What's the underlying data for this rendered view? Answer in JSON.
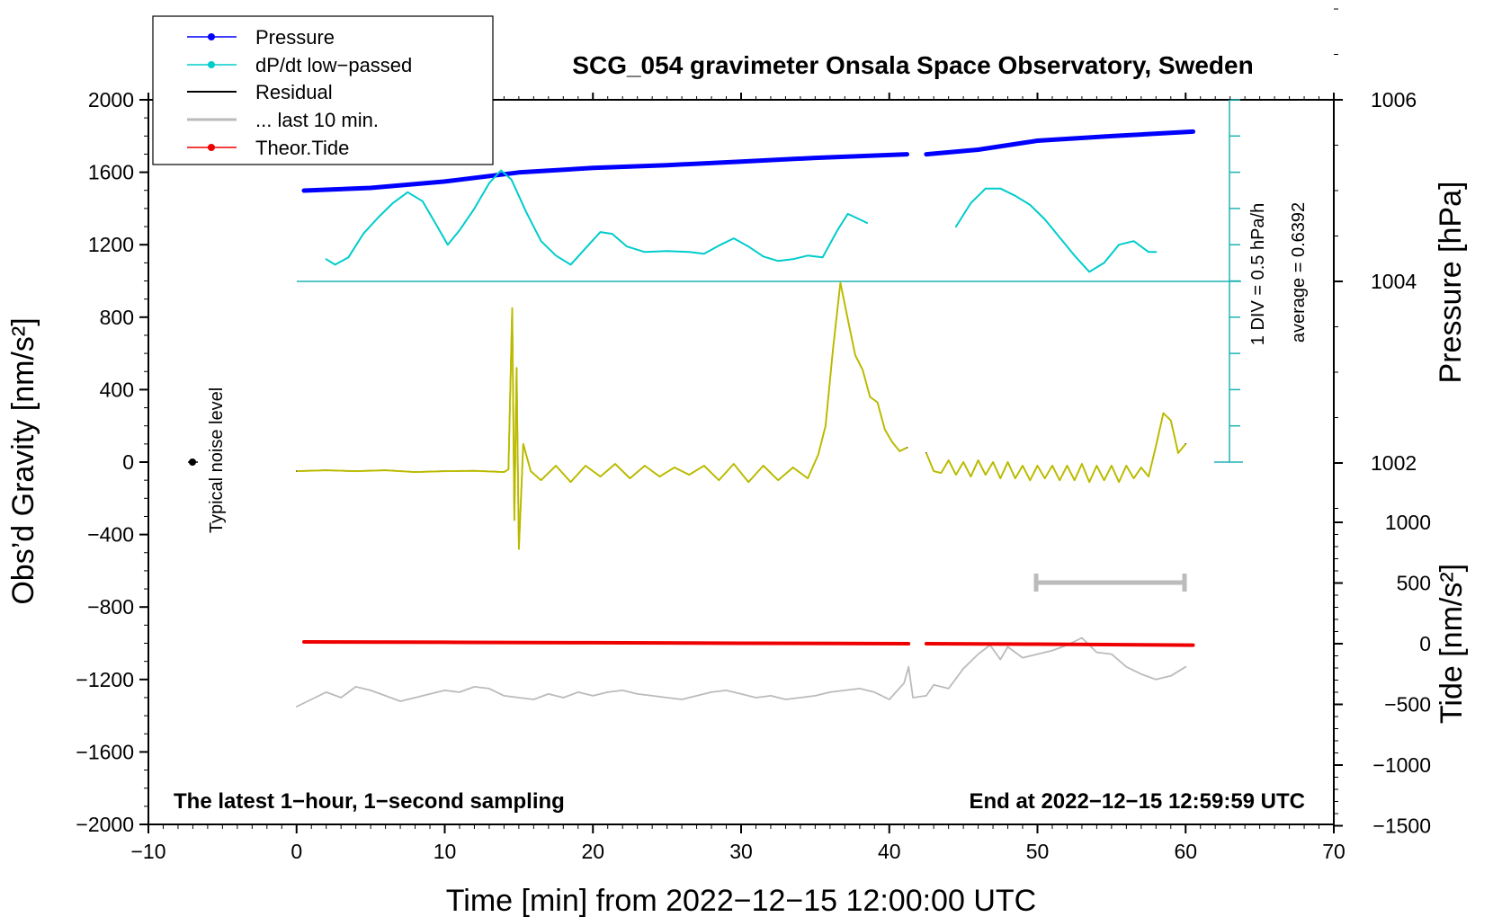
{
  "chart_data": {
    "type": "line",
    "title": "SCG_054 gravimeter Onsala Space Observatory, Sweden",
    "xlabel": "Time [min] from 2022−12−15 12:00:00 UTC",
    "ylabel_left": "Obs’d Gravity [nm/s²]",
    "ylabel_right_top": "Pressure [hPa]",
    "ylabel_right_bottom": "Tide [nm/s²]",
    "xlim": [
      -10,
      70
    ],
    "ylim": [
      -2000,
      2000
    ],
    "x_ticks": [
      "−10",
      "0",
      "10",
      "20",
      "30",
      "40",
      "50",
      "60",
      "70"
    ],
    "y_ticks": [
      "2000",
      "1600",
      "1200",
      "800",
      "400",
      "0",
      "−400",
      "−800",
      "−1200",
      "−1600",
      "−2000"
    ],
    "pressure_ticks": [
      "1006",
      "1004",
      "1002"
    ],
    "tide_ticks": [
      "1000",
      "500",
      "0",
      "−500",
      "−1000",
      "−1500"
    ],
    "legend": [
      {
        "label": "Pressure",
        "color": "#0000ff",
        "marker": true
      },
      {
        "label": "dP/dt low−passed",
        "color": "#00cccc",
        "marker": true
      },
      {
        "label": "Residual",
        "color": "#000000",
        "marker": false
      },
      {
        "label": "... last 10 min.",
        "color": "#bbbbbb",
        "marker": false
      },
      {
        "label": "Theor.Tide",
        "color": "#ee0000",
        "marker": true
      }
    ],
    "annotations": {
      "noise_label": "Typical noise level",
      "scale_label": "1 DIV = 0.5 hPa/h",
      "average_label": "average = 0.6392",
      "bottom_left": "The latest 1−hour, 1−second sampling",
      "bottom_right": "End at 2022−12−15 12:59:59 UTC"
    },
    "series": [
      {
        "name": "Pressure",
        "axis": "pressure_hPa",
        "color": "#0000ff",
        "x": [
          0.5,
          5,
          10,
          15,
          20,
          25,
          30,
          35,
          41.2,
          null,
          42.5,
          46,
          50,
          55,
          60.5
        ],
        "y": [
          1005.0,
          1005.03,
          1005.1,
          1005.2,
          1005.25,
          1005.28,
          1005.32,
          1005.36,
          1005.4,
          null,
          1005.4,
          1005.45,
          1005.55,
          1005.6,
          1005.65
        ]
      },
      {
        "name": "dP/dt low-passed",
        "axis": "gravity_plot_units",
        "color": "#00cccc",
        "x": [
          2,
          2.6,
          3.5,
          4.5,
          5.5,
          6.5,
          7.5,
          8.5,
          9.5,
          10.2,
          11,
          12,
          13,
          13.8,
          14.5,
          15.5,
          16.5,
          17.5,
          18.5,
          19.5,
          20.5,
          21.3,
          22.3,
          23.5,
          25,
          26.5,
          27.5,
          28.5,
          29.5,
          30.5,
          31.5,
          32.5,
          33.5,
          34.5,
          35.5,
          36.5,
          37.2,
          38,
          38.5,
          null,
          44.5,
          45.5,
          46.5,
          47.5,
          48.5,
          49.5,
          50.5,
          51.5,
          52.5,
          53.5,
          54.5,
          55.5,
          56.5,
          57.5,
          58
        ],
        "y": [
          1120,
          1090,
          1130,
          1260,
          1350,
          1430,
          1490,
          1440,
          1300,
          1200,
          1280,
          1400,
          1540,
          1610,
          1560,
          1380,
          1220,
          1140,
          1090,
          1180,
          1270,
          1260,
          1190,
          1160,
          1165,
          1160,
          1150,
          1195,
          1235,
          1190,
          1135,
          1110,
          1120,
          1140,
          1130,
          1280,
          1370,
          1340,
          1320,
          null,
          1300,
          1430,
          1510,
          1510,
          1470,
          1420,
          1340,
          1240,
          1140,
          1050,
          1100,
          1200,
          1220,
          1160,
          1160
        ]
      },
      {
        "name": "Residual",
        "axis": "gravity_nm_s2",
        "color": "#000000",
        "x": [
          0,
          2,
          4,
          6,
          8,
          10,
          12,
          14,
          14.3,
          14.55,
          14.7,
          14.85,
          15.0,
          15.3,
          15.8,
          16.5,
          17.5,
          18.5,
          19.5,
          20.5,
          21.5,
          22.5,
          23.5,
          24.5,
          25.5,
          26.5,
          27.5,
          28.5,
          29.5,
          30.5,
          31.5,
          32.5,
          33.5,
          34.5,
          35.2,
          35.7,
          36.2,
          36.7,
          37.2,
          37.7,
          38.2,
          38.7,
          39.2,
          39.7,
          40.2,
          40.7,
          41.2,
          null,
          42.5,
          43,
          43.5,
          44,
          44.5,
          45,
          45.5,
          46,
          46.5,
          47,
          47.5,
          48,
          48.5,
          49,
          49.5,
          50,
          50.5,
          51,
          51.5,
          52,
          52.5,
          53,
          53.5,
          54,
          54.5,
          55,
          55.5,
          56,
          56.5,
          57,
          57.5,
          58,
          58.5,
          59,
          59.5,
          60
        ],
        "y": [
          -50,
          -45,
          -50,
          -45,
          -55,
          -50,
          -48,
          -55,
          -40,
          850,
          -320,
          520,
          -480,
          100,
          -50,
          -100,
          -20,
          -110,
          -20,
          -80,
          -10,
          -90,
          -20,
          -80,
          -30,
          -70,
          -20,
          -100,
          -10,
          -110,
          -20,
          -100,
          -30,
          -90,
          40,
          200,
          620,
          990,
          790,
          590,
          510,
          360,
          330,
          180,
          110,
          60,
          80,
          null,
          50,
          -50,
          -60,
          10,
          -70,
          0,
          -80,
          10,
          -70,
          0,
          -90,
          0,
          -90,
          -20,
          -100,
          -20,
          -90,
          -20,
          -100,
          -20,
          -100,
          -10,
          -110,
          -20,
          -100,
          -20,
          -110,
          -20,
          -90,
          -30,
          -80,
          90,
          270,
          230,
          50,
          100
        ]
      },
      {
        "name": "... last 10 min.",
        "axis": "gravity_plot_units",
        "color": "#bbbbbb",
        "x": [
          0,
          1,
          2,
          3,
          4,
          5,
          6,
          7,
          8,
          9,
          10,
          11,
          12,
          13,
          14,
          15,
          16,
          17,
          18,
          19,
          20,
          21,
          22,
          23,
          24,
          25,
          26,
          27,
          28,
          29,
          30,
          31,
          32,
          33,
          34,
          35,
          36,
          37,
          38,
          39,
          40,
          41,
          41.3,
          41.6,
          42.5,
          43,
          44,
          45,
          46,
          46.8,
          47.5,
          48,
          49,
          50,
          51,
          52,
          53,
          54,
          55,
          56,
          57,
          58,
          59,
          60
        ],
        "y": [
          -1350,
          -1310,
          -1270,
          -1300,
          -1240,
          -1260,
          -1290,
          -1320,
          -1300,
          -1280,
          -1260,
          -1270,
          -1240,
          -1250,
          -1290,
          -1300,
          -1310,
          -1280,
          -1300,
          -1270,
          -1290,
          -1270,
          -1260,
          -1280,
          -1290,
          -1300,
          -1310,
          -1290,
          -1270,
          -1260,
          -1280,
          -1300,
          -1290,
          -1310,
          -1300,
          -1290,
          -1270,
          -1260,
          -1250,
          -1270,
          -1310,
          -1220,
          -1130,
          -1300,
          -1290,
          -1230,
          -1250,
          -1140,
          -1060,
          -1010,
          -1090,
          -1020,
          -1080,
          -1060,
          -1040,
          -1010,
          -970,
          -1050,
          -1060,
          -1130,
          -1170,
          -1200,
          -1180,
          -1130
        ]
      },
      {
        "name": "Theor.Tide",
        "axis": "tide_nm_s2",
        "color": "#ee0000",
        "x": [
          0.5,
          10,
          20,
          30,
          41.3,
          null,
          42.5,
          50,
          60.5
        ],
        "y": [
          15,
          12,
          8,
          4,
          0,
          null,
          0,
          -4,
          -12
        ]
      }
    ]
  }
}
